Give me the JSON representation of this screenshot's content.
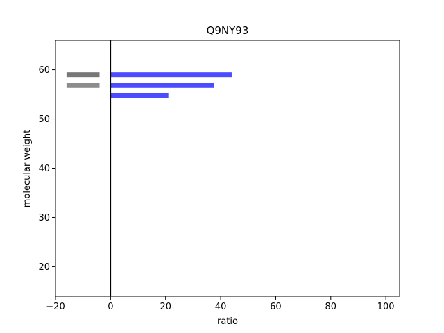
{
  "chart_data": {
    "type": "bar",
    "orientation": "horizontal",
    "title": "Q9NY93",
    "xlabel": "ratio",
    "ylabel": "molecular weight",
    "xlim": [
      -20,
      105
    ],
    "ylim": [
      14,
      66
    ],
    "xticks": [
      -20,
      0,
      20,
      40,
      60,
      80,
      100
    ],
    "yticks": [
      20,
      30,
      40,
      50,
      60
    ],
    "grid": false,
    "reference_line_x": 0,
    "series": [
      {
        "color": "#4b4bff",
        "bars": [
          {
            "y": 59.0,
            "start": 0,
            "end": 44
          },
          {
            "y": 56.8,
            "start": 0,
            "end": 37.5
          },
          {
            "y": 54.8,
            "start": 0,
            "end": 21
          }
        ]
      },
      {
        "color": "#777777",
        "bars": [
          {
            "y": 59.0,
            "start": -16,
            "end": -4
          }
        ]
      },
      {
        "color": "#8c8c8c",
        "bars": [
          {
            "y": 56.8,
            "start": -16,
            "end": -4
          }
        ]
      }
    ]
  }
}
